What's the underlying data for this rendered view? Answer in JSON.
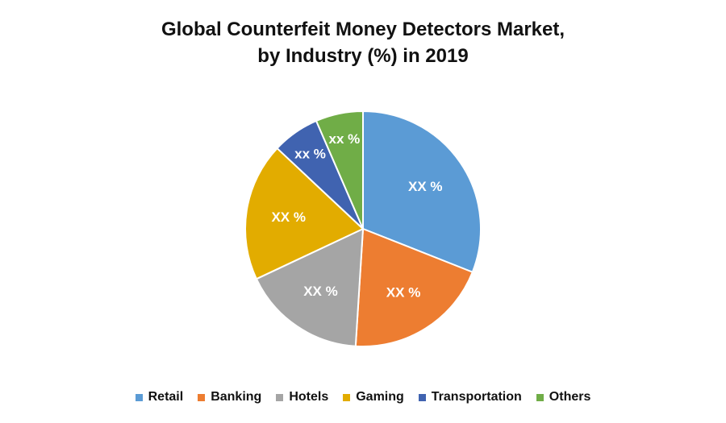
{
  "chart_data": {
    "type": "pie",
    "title_line1": "Global Counterfeit Money Detectors Market,",
    "title_line2": "by Industry (%) in 2019",
    "legend_position": "bottom",
    "slices": [
      {
        "name": "Retail",
        "value": 31,
        "label": "XX %",
        "color": "#5B9BD5"
      },
      {
        "name": "Banking",
        "value": 20,
        "label": "XX %",
        "color": "#ED7D31"
      },
      {
        "name": "Hotels",
        "value": 17,
        "label": "XX %",
        "color": "#A5A5A5"
      },
      {
        "name": "Gaming",
        "value": 19,
        "label": "XX %",
        "color": "#E2AC00"
      },
      {
        "name": "Transportation",
        "value": 6.5,
        "label": "xx %",
        "color": "#4063B0"
      },
      {
        "name": "Others",
        "value": 6.5,
        "label": "xx %",
        "color": "#70AD47"
      }
    ]
  }
}
